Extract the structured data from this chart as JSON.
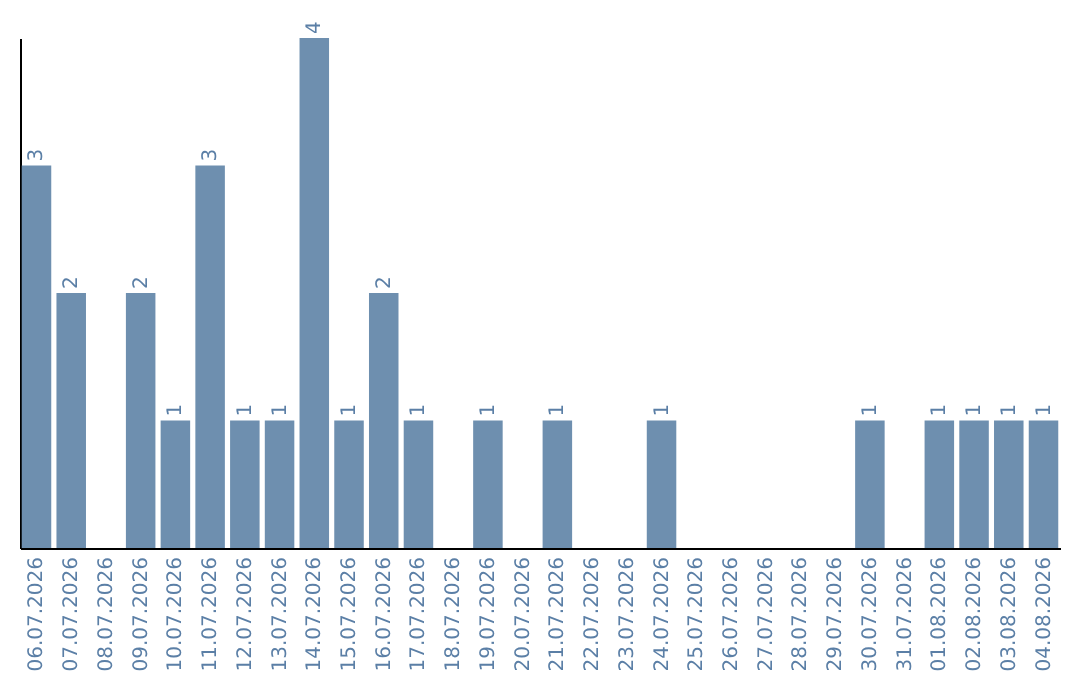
{
  "chart_data": {
    "type": "bar",
    "categories": [
      "06.07.2026",
      "07.07.2026",
      "08.07.2026",
      "09.07.2026",
      "10.07.2026",
      "11.07.2026",
      "12.07.2026",
      "13.07.2026",
      "14.07.2026",
      "15.07.2026",
      "16.07.2026",
      "17.07.2026",
      "18.07.2026",
      "19.07.2026",
      "20.07.2026",
      "21.07.2026",
      "22.07.2026",
      "23.07.2026",
      "24.07.2026",
      "25.07.2026",
      "26.07.2026",
      "27.07.2026",
      "28.07.2026",
      "29.07.2026",
      "30.07.2026",
      "31.07.2026",
      "01.08.2026",
      "02.08.2026",
      "03.08.2026",
      "04.08.2026"
    ],
    "values": [
      3,
      2,
      0,
      2,
      1,
      3,
      1,
      1,
      4,
      1,
      2,
      1,
      0,
      1,
      0,
      1,
      0,
      0,
      1,
      0,
      0,
      0,
      0,
      0,
      1,
      0,
      1,
      1,
      1,
      1
    ],
    "value_labels": [
      "3",
      "2",
      null,
      "2",
      "1",
      "3",
      "1",
      "1",
      "4",
      "1",
      "2",
      "1",
      null,
      "1",
      null,
      "1",
      null,
      null,
      "1",
      null,
      null,
      null,
      null,
      null,
      "1",
      null,
      "1",
      "1",
      "1",
      "1"
    ],
    "color": "#6e8faf"
  }
}
